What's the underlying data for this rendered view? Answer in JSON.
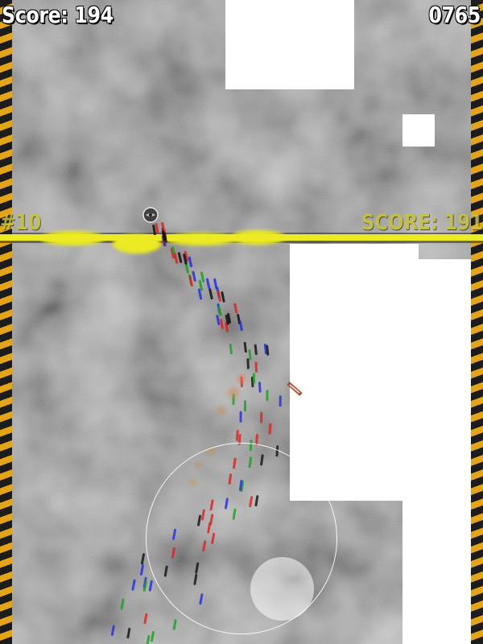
{
  "hud": {
    "score_label": "Score: 194",
    "timer": "0765"
  },
  "marker": {
    "number": "#10",
    "score_label": "SCORE: 191"
  },
  "colors": {
    "hazard_dark": "#1c1c1c",
    "hazard_yellow": "#e3a417",
    "marker_line": "#ecea24",
    "wall": "#ffffff",
    "trail": [
      "#e02020",
      "#2030e0",
      "#18a020",
      "#101010"
    ]
  },
  "icons": {
    "player": "player-ball-icon"
  }
}
